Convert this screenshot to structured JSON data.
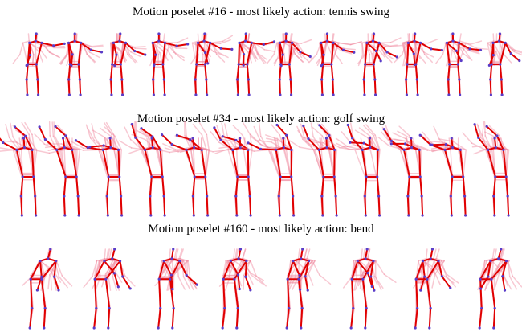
{
  "figure": {
    "panels": [
      {
        "title": "Motion poselet #16 - most likely action: tennis swing"
      },
      {
        "title": "Motion poselet #34 - most likely action: golf swing"
      },
      {
        "title": "Motion poselet #160 - most likely action: bend"
      }
    ]
  }
}
